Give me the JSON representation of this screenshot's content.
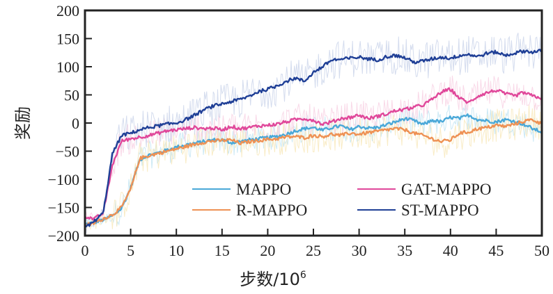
{
  "chart_data": {
    "type": "line",
    "title": "",
    "xlabel": "步数/10",
    "xlabel_superscript": "6",
    "ylabel": "奖励",
    "xlim": [
      0,
      50
    ],
    "ylim": [
      -200,
      200
    ],
    "xticks": [
      0,
      5,
      10,
      15,
      20,
      25,
      30,
      35,
      40,
      45,
      50
    ],
    "yticks": [
      200,
      150,
      100,
      50,
      0,
      -50,
      -100,
      -150,
      -200
    ],
    "xtick_labels": [
      "0",
      "5",
      "10",
      "15",
      "20",
      "25",
      "30",
      "35",
      "40",
      "45",
      "50"
    ],
    "ytick_labels": [
      "200",
      "150",
      "100",
      "50",
      "0",
      "−50",
      "−100",
      "−150",
      "−200"
    ],
    "grid": false,
    "legend_position": "bottom-right",
    "x": [
      0,
      1,
      2,
      3,
      4,
      5,
      6,
      7,
      8,
      9,
      10,
      11,
      12,
      13,
      14,
      15,
      16,
      17,
      18,
      19,
      20,
      21,
      22,
      23,
      24,
      25,
      26,
      27,
      28,
      29,
      30,
      31,
      32,
      33,
      34,
      35,
      36,
      37,
      38,
      39,
      40,
      41,
      42,
      43,
      44,
      45,
      46,
      47,
      48,
      49,
      50
    ],
    "series": [
      {
        "name": "MAPPO",
        "color": "#4aa8d8",
        "noise_color": "#bfe3f2",
        "noise_amplitude": 25,
        "values": [
          -180,
          -177,
          -172,
          -165,
          -152,
          -115,
          -65,
          -57,
          -53,
          -48,
          -43,
          -39,
          -36,
          -33,
          -30,
          -30,
          -35,
          -33,
          -30,
          -28,
          -26,
          -24,
          -20,
          -14,
          -10,
          -8,
          -13,
          -8,
          -5,
          -12,
          -6,
          -9,
          -8,
          -3,
          2,
          8,
          4,
          -3,
          5,
          2,
          10,
          8,
          14,
          6,
          4,
          2,
          6,
          3,
          -2,
          -10,
          -16
        ]
      },
      {
        "name": "R-MAPPO",
        "color": "#ee9154",
        "noise_color": "#f7e7b8",
        "noise_amplitude": 30,
        "values": [
          -182,
          -178,
          -170,
          -163,
          -150,
          -118,
          -63,
          -58,
          -54,
          -50,
          -46,
          -42,
          -38,
          -34,
          -32,
          -31,
          -30,
          -36,
          -33,
          -31,
          -29,
          -28,
          -25,
          -24,
          -26,
          -22,
          -24,
          -20,
          -22,
          -18,
          -20,
          -17,
          -15,
          -12,
          -10,
          -12,
          -18,
          -22,
          -28,
          -33,
          -30,
          -18,
          -16,
          -10,
          -8,
          -4,
          -6,
          -2,
          3,
          6,
          -2
        ]
      },
      {
        "name": "GAT-MAPPO",
        "color": "#e0479a",
        "noise_color": "#f8cfe2",
        "noise_amplitude": 28,
        "values": [
          -165,
          -171,
          -160,
          -75,
          -32,
          -28,
          -25,
          -22,
          -18,
          -14,
          -12,
          -10,
          -8,
          -10,
          -9,
          -12,
          -6,
          -10,
          -8,
          -5,
          -4,
          -2,
          2,
          6,
          8,
          5,
          -2,
          2,
          8,
          10,
          14,
          8,
          12,
          16,
          22,
          24,
          28,
          32,
          42,
          55,
          60,
          44,
          36,
          48,
          54,
          58,
          52,
          48,
          54,
          48,
          44
        ]
      },
      {
        "name": "ST-MAPPO",
        "color": "#1f3f96",
        "noise_color": "#c9d3ea",
        "noise_amplitude": 35,
        "values": [
          -186,
          -175,
          -160,
          -55,
          -22,
          -18,
          -12,
          -8,
          -5,
          -2,
          0,
          6,
          14,
          23,
          30,
          34,
          38,
          42,
          48,
          56,
          60,
          66,
          74,
          80,
          74,
          90,
          100,
          112,
          113,
          115,
          117,
          114,
          112,
          118,
          120,
          116,
          108,
          110,
          114,
          117,
          115,
          120,
          122,
          118,
          124,
          126,
          120,
          124,
          128,
          126,
          128
        ]
      }
    ]
  }
}
